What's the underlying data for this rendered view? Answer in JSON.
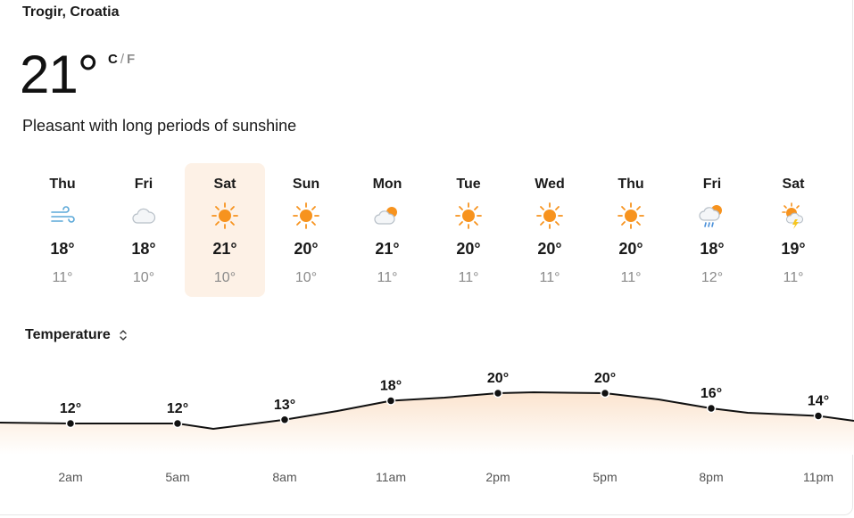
{
  "location": "Trogir, Croatia",
  "current": {
    "temperature": "21°",
    "unit_c": "C",
    "unit_sep": "/",
    "unit_f": "F",
    "condition": "Pleasant with long periods of sunshine"
  },
  "days": [
    {
      "name": "Thu",
      "high": "18°",
      "low": "11°",
      "icon": "wind-icon"
    },
    {
      "name": "Fri",
      "high": "18°",
      "low": "10°",
      "icon": "cloud-icon"
    },
    {
      "name": "Sat",
      "high": "21°",
      "low": "10°",
      "icon": "sun-icon"
    },
    {
      "name": "Sun",
      "high": "20°",
      "low": "10°",
      "icon": "sun-icon"
    },
    {
      "name": "Mon",
      "high": "21°",
      "low": "11°",
      "icon": "partly-cloudy-icon"
    },
    {
      "name": "Tue",
      "high": "20°",
      "low": "11°",
      "icon": "sun-icon"
    },
    {
      "name": "Wed",
      "high": "20°",
      "low": "11°",
      "icon": "sun-icon"
    },
    {
      "name": "Thu",
      "high": "20°",
      "low": "11°",
      "icon": "sun-icon"
    },
    {
      "name": "Fri",
      "high": "18°",
      "low": "12°",
      "icon": "rain-sun-icon"
    },
    {
      "name": "Sat",
      "high": "19°",
      "low": "11°",
      "icon": "thunder-sun-icon"
    }
  ],
  "selected_day_index": 2,
  "metric_selector": {
    "label": "Temperature",
    "icon": "chevron-up-down-icon"
  },
  "colors": {
    "sun": "#f7931e",
    "selected_bg": "#fdf1e6",
    "line": "#111111",
    "fill_top": "#fbe4cf",
    "muted": "#8a8a8a"
  },
  "chart_data": {
    "type": "area",
    "x": [
      "2am",
      "5am",
      "8am",
      "11am",
      "2pm",
      "5pm",
      "8pm",
      "11pm"
    ],
    "values": [
      12,
      12,
      13,
      18,
      20,
      20,
      16,
      14
    ],
    "labels": [
      "12°",
      "12°",
      "13°",
      "18°",
      "20°",
      "20°",
      "16°",
      "14°"
    ]
  }
}
